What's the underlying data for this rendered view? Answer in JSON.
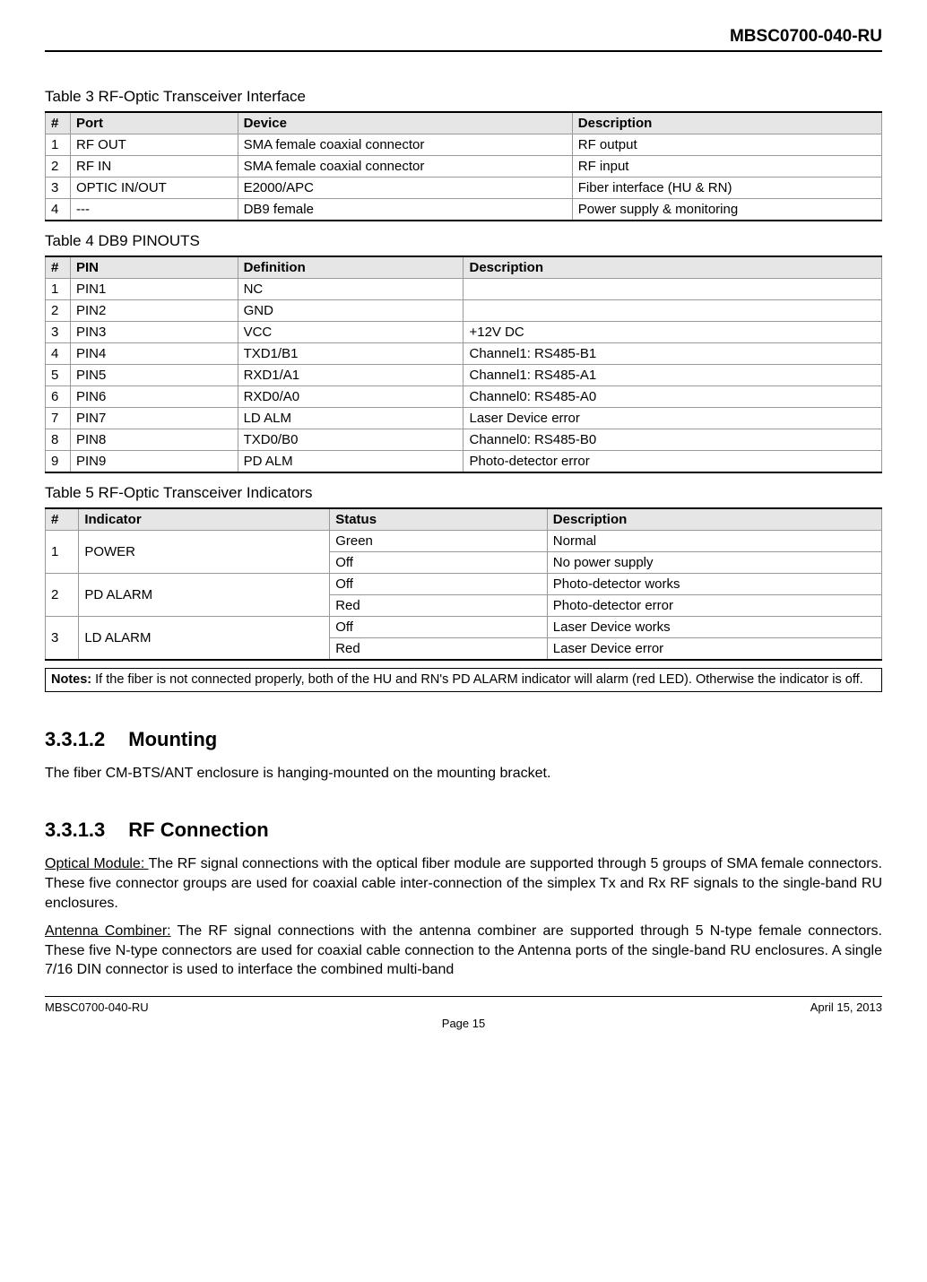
{
  "header": {
    "doc_id": "MBSC0700-040-RU"
  },
  "table3": {
    "caption": "Table 3 RF-Optic Transceiver Interface",
    "columns": [
      "#",
      "Port",
      "Device",
      "Description"
    ],
    "col_widths": [
      "3%",
      "20%",
      "40%",
      "37%"
    ],
    "header_bg": "#e6e6e6",
    "rows": [
      [
        "1",
        "RF OUT",
        "SMA female coaxial connector",
        "RF output"
      ],
      [
        "2",
        "RF IN",
        "SMA female coaxial connector",
        "RF input"
      ],
      [
        "3",
        "OPTIC IN/OUT",
        "E2000/APC",
        "Fiber interface (HU & RN)"
      ],
      [
        "4",
        "---",
        "DB9 female",
        "Power supply & monitoring"
      ]
    ]
  },
  "table4": {
    "caption": "Table 4 DB9 PINOUTS",
    "columns": [
      "#",
      "PIN",
      "Definition",
      "Description"
    ],
    "col_widths": [
      "3%",
      "20%",
      "27%",
      "50%"
    ],
    "header_bg": "#e6e6e6",
    "rows": [
      [
        "1",
        "PIN1",
        "NC",
        ""
      ],
      [
        "2",
        "PIN2",
        "GND",
        ""
      ],
      [
        "3",
        "PIN3",
        "VCC",
        "+12V DC"
      ],
      [
        "4",
        "PIN4",
        "TXD1/B1",
        "Channel1: RS485-B1"
      ],
      [
        "5",
        "PIN5",
        "RXD1/A1",
        "Channel1: RS485-A1"
      ],
      [
        "6",
        "PIN6",
        "RXD0/A0",
        "Channel0: RS485-A0"
      ],
      [
        "7",
        "PIN7",
        "LD ALM",
        "Laser Device error"
      ],
      [
        "8",
        "PIN8",
        "TXD0/B0",
        "Channel0: RS485-B0"
      ],
      [
        "9",
        "PIN9",
        "PD ALM",
        "Photo-detector error"
      ]
    ]
  },
  "table5": {
    "caption": "Table 5 RF-Optic Transceiver Indicators",
    "columns": [
      "#",
      "Indicator",
      "Status",
      "Description"
    ],
    "col_widths": [
      "4%",
      "30%",
      "26%",
      "40%"
    ],
    "header_bg": "#e6e6e6",
    "groups": [
      {
        "num": "1",
        "indicator": "POWER",
        "rows": [
          {
            "status": "Green",
            "desc": "Normal"
          },
          {
            "status": "Off",
            "desc": "No power supply"
          }
        ]
      },
      {
        "num": "2",
        "indicator": "PD ALARM",
        "rows": [
          {
            "status": "Off",
            "desc": "Photo-detector works"
          },
          {
            "status": "Red",
            "desc": "Photo-detector error"
          }
        ]
      },
      {
        "num": "3",
        "indicator": "LD ALARM",
        "rows": [
          {
            "status": "Off",
            "desc": "Laser Device works"
          },
          {
            "status": "Red",
            "desc": "Laser Device error"
          }
        ]
      }
    ]
  },
  "notes": {
    "label": "Notes:",
    "text": " If the fiber is not connected properly, both of the HU and RN's PD ALARM indicator will alarm (red LED). Otherwise the indicator is off."
  },
  "sections": {
    "mounting": {
      "num": "3.3.1.2",
      "title": "Mounting",
      "body": "The fiber CM-BTS/ANT enclosure is hanging-mounted on the mounting bracket."
    },
    "rfconn": {
      "num": "3.3.1.3",
      "title": "RF Connection",
      "optical_label": "Optical Module: ",
      "optical_body": "The RF signal connections with the optical fiber module are supported through 5 groups of SMA female connectors. These five connector groups are used for coaxial cable inter-connection of the simplex Tx and Rx RF signals to the single-band RU enclosures.",
      "antenna_label": "Antenna Combiner:",
      "antenna_body": " The RF signal connections with the antenna combiner are supported through 5 N-type female connectors. These five N-type connectors are used for coaxial cable connection to the Antenna ports of the single-band RU enclosures. A single 7/16 DIN connector is used to interface the combined multi-band"
    }
  },
  "footer": {
    "left": "MBSC0700-040-RU",
    "right": "April 15, 2013",
    "center": "Page 15"
  }
}
